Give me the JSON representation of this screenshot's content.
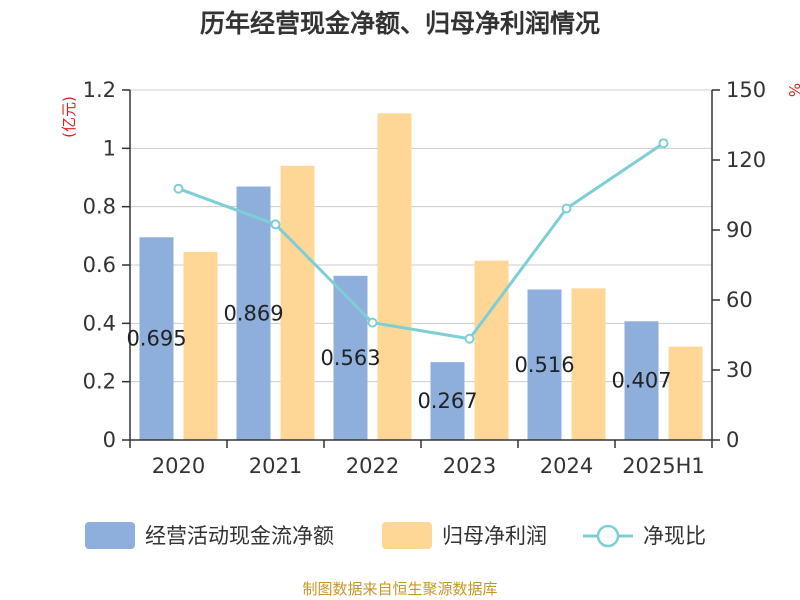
{
  "colors": {
    "bar_a": "#8eaedb",
    "bar_b": "#fed797",
    "line": "#7dcfd5",
    "axis": "#333333",
    "grid": "#cccccc",
    "unit_label": "#e02020",
    "source": "#c8962a"
  },
  "chart_data": {
    "type": "bar",
    "title": "历年经营现金净额、归母净利润情况",
    "left_unit": "(亿元)",
    "right_unit": "%",
    "categories": [
      "2020",
      "2021",
      "2022",
      "2023",
      "2024",
      "2025H1"
    ],
    "series": [
      {
        "name": "经营活动现金流净额",
        "type": "bar",
        "axis": "left",
        "values": [
          0.695,
          0.869,
          0.563,
          0.267,
          0.516,
          0.407
        ],
        "labels": [
          "0.695",
          "0.869",
          "0.563",
          "0.267",
          "0.516",
          "0.407"
        ]
      },
      {
        "name": "归母净利润",
        "type": "bar",
        "axis": "left",
        "values": [
          0.645,
          0.94,
          1.12,
          0.615,
          0.52,
          0.32
        ]
      },
      {
        "name": "净现比",
        "type": "line",
        "axis": "right",
        "values": [
          107.7,
          92.4,
          50.3,
          43.4,
          99.2,
          127.2
        ]
      }
    ],
    "y_left": {
      "min": 0,
      "max": 1.2,
      "ticks": [
        "0",
        "0.2",
        "0.4",
        "0.6",
        "0.8",
        "1",
        "1.2"
      ]
    },
    "y_right": {
      "min": 0,
      "max": 150,
      "ticks": [
        "0",
        "30",
        "60",
        "90",
        "120",
        "150"
      ]
    },
    "grid": true,
    "legend_position": "bottom"
  },
  "source": "制图数据来自恒生聚源数据库"
}
